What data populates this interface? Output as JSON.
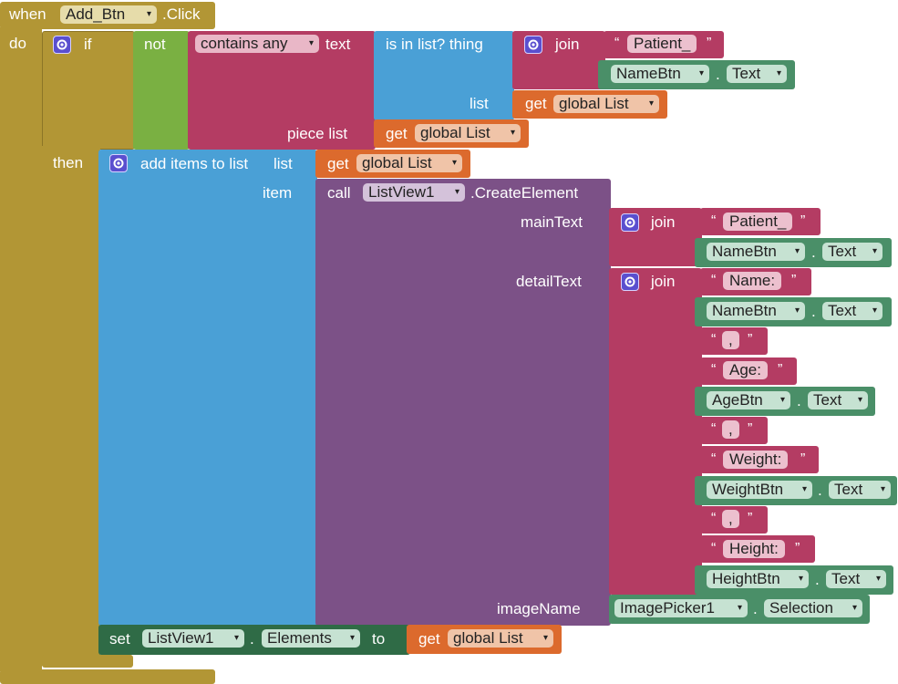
{
  "event": {
    "when": "when",
    "component": "Add_Btn",
    "suffix": ".Click",
    "do": "do"
  },
  "if_block": {
    "if": "if",
    "then": "then",
    "not": "not"
  },
  "contains": {
    "mode": "contains any",
    "text_label": "text",
    "piece_label": "piece list"
  },
  "islist": {
    "label": "is in list? thing",
    "list_label": "list"
  },
  "join": "join",
  "get": "get",
  "global_list": "global List",
  "quote_open": "“",
  "quote_close": "”",
  "dot": ".",
  "str_patient": "Patient_",
  "str_name": "Name:",
  "str_comma": ",",
  "str_age": "Age:",
  "str_weight": "Weight:",
  "str_height": "Height:",
  "namebtn": "NameBtn",
  "agebtn": "AgeBtn",
  "weightbtn": "WeightBtn",
  "heightbtn": "HeightBtn",
  "prop_text": "Text",
  "add_items": {
    "label": "add items to list",
    "list_label": "list",
    "item_label": "item"
  },
  "call": {
    "call": "call",
    "component": "ListView1",
    "method": ".CreateElement",
    "mainText": "mainText",
    "detailText": "detailText",
    "imageName": "imageName"
  },
  "imagepicker": {
    "component": "ImagePicker1",
    "prop": "Selection"
  },
  "set_block": {
    "set": "set",
    "component": "ListView1",
    "prop": "Elements",
    "to": "to"
  },
  "dropdown_arrow": "▾"
}
